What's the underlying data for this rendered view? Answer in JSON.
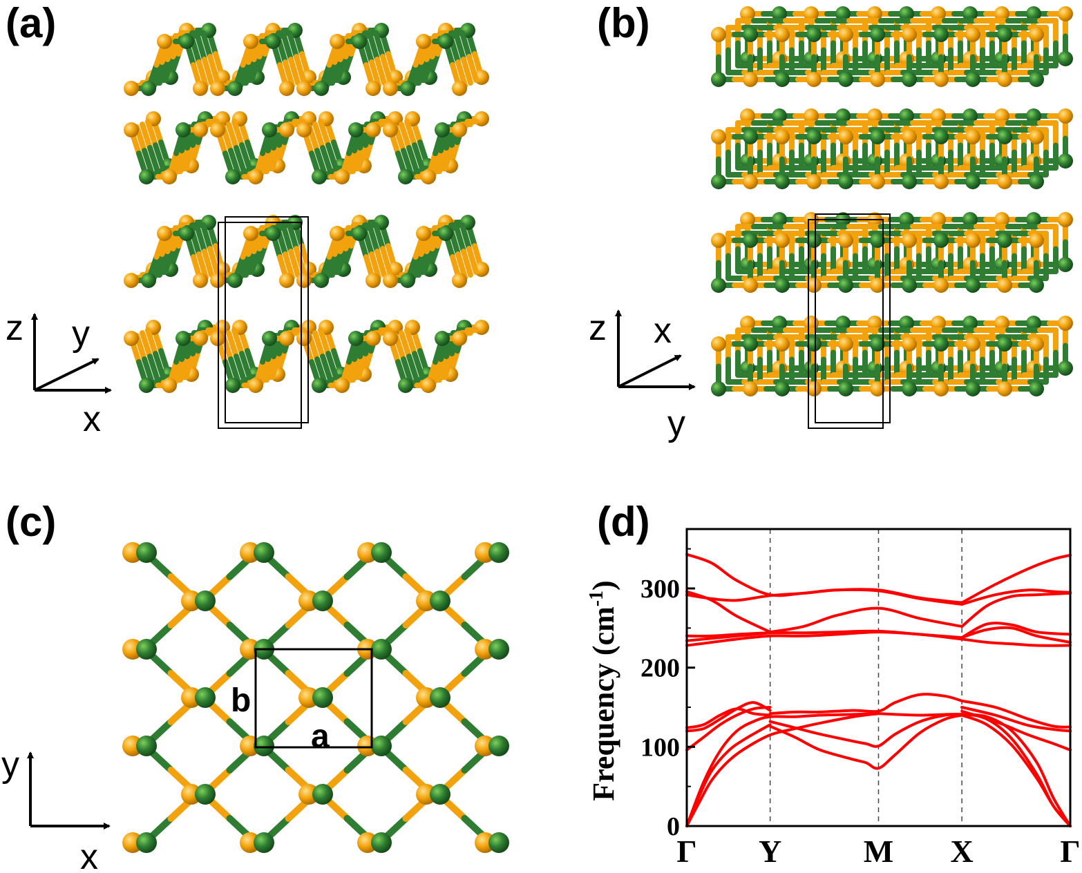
{
  "panels": {
    "a": {
      "label": "(a)",
      "axes": {
        "vertical": "z",
        "diagonal": "y",
        "horizontal": "x"
      }
    },
    "b": {
      "label": "(b)",
      "axes": {
        "vertical": "z",
        "diagonal": "x",
        "horizontal": "y"
      }
    },
    "c": {
      "label": "(c)",
      "axes": {
        "vertical": "y",
        "horizontal": "x"
      },
      "lattice": {
        "a": "a",
        "b": "b"
      }
    },
    "d": {
      "label": "(d)"
    }
  },
  "colors": {
    "atom_green": "#2e7d32",
    "atom_orange": "#f2a20c",
    "band": "#ff0000",
    "cell": "#000000"
  },
  "chart_data": {
    "type": "line",
    "title": "",
    "xlabel": "",
    "ylabel": "Frequency (cm-1)",
    "ylabel_parts": {
      "main": "Frequency (cm",
      "sup": "-1",
      "close": ")"
    },
    "ylim": [
      0,
      375
    ],
    "yticks": [
      0,
      100,
      200,
      300
    ],
    "x_labels": [
      "Γ",
      "Y",
      "M",
      "X",
      "Γ"
    ],
    "x_positions": [
      0,
      1,
      2.3,
      3.3,
      4.6
    ],
    "xlim": [
      0,
      4.6
    ],
    "grid": "dashed vertical lines at high-symmetry points",
    "series": [
      {
        "x": [
          0,
          0.15,
          0.3,
          0.5,
          0.7,
          1.0,
          1.3,
          1.6,
          2.0,
          2.3
        ],
        "y": [
          0,
          30,
          58,
          82,
          98,
          115,
          123,
          130,
          138,
          142
        ]
      },
      {
        "x": [
          0,
          0.15,
          0.3,
          0.5,
          0.7,
          1.0
        ],
        "y": [
          0,
          38,
          70,
          95,
          110,
          128
        ]
      },
      {
        "x": [
          0,
          0.2,
          0.4,
          0.6,
          0.8,
          1.0,
          1.3,
          1.6,
          2.0,
          2.3
        ],
        "y": [
          0,
          55,
          95,
          120,
          132,
          138,
          138,
          140,
          141,
          142
        ]
      },
      {
        "x": [
          0,
          0.2,
          0.4,
          0.6,
          0.8,
          1.0
        ],
        "y": [
          96,
          112,
          128,
          140,
          148,
          150
        ]
      },
      {
        "x": [
          0,
          0.2,
          0.4,
          0.6,
          0.8,
          1.0
        ],
        "y": [
          120,
          123,
          135,
          148,
          156,
          146
        ]
      },
      {
        "x": [
          0,
          0.2,
          0.4,
          0.6,
          0.8,
          1.0
        ],
        "y": [
          124,
          128,
          140,
          148,
          142,
          140
        ]
      },
      {
        "x": [
          1.0,
          1.3,
          1.6,
          2.0,
          2.15,
          2.3,
          2.5,
          2.8,
          3.1,
          3.3
        ],
        "y": [
          126,
          112,
          96,
          84,
          80,
          73,
          90,
          118,
          135,
          140
        ]
      },
      {
        "x": [
          1.0,
          1.3,
          1.6,
          2.0,
          2.15,
          2.3,
          2.5,
          2.8,
          3.1,
          3.3
        ],
        "y": [
          132,
          124,
          116,
          107,
          104,
          101,
          116,
          132,
          140,
          141
        ]
      },
      {
        "x": [
          1.0,
          1.3,
          1.6,
          2.0,
          2.3,
          2.5,
          2.8,
          3.1,
          3.3
        ],
        "y": [
          142,
          144,
          144,
          146,
          145,
          156,
          166,
          164,
          158
        ]
      },
      {
        "x": [
          2.3,
          2.8,
          3.3,
          3.6,
          3.9,
          4.2,
          4.4,
          4.6
        ],
        "y": [
          142,
          140,
          141,
          135,
          110,
          65,
          25,
          0
        ]
      },
      {
        "x": [
          3.3,
          3.6,
          3.9,
          4.2,
          4.4,
          4.6
        ],
        "y": [
          141,
          138,
          120,
          80,
          35,
          0
        ]
      },
      {
        "x": [
          3.3,
          3.6,
          3.9,
          4.2,
          4.4,
          4.6
        ],
        "y": [
          140,
          128,
          102,
          60,
          25,
          0
        ]
      },
      {
        "x": [
          3.3,
          3.7,
          4.1,
          4.4,
          4.6
        ],
        "y": [
          158,
          150,
          135,
          126,
          125
        ]
      },
      {
        "x": [
          3.3,
          3.7,
          4.1,
          4.4,
          4.6
        ],
        "y": [
          150,
          140,
          127,
          122,
          120
        ]
      },
      {
        "x": [
          3.3,
          3.7,
          4.1,
          4.4,
          4.6
        ],
        "y": [
          145,
          132,
          115,
          104,
          96
        ]
      },
      {
        "x": [
          0,
          0.3,
          0.6,
          1.0,
          1.4,
          1.8,
          2.3,
          2.8,
          3.3
        ],
        "y": [
          343,
          332,
          310,
          292,
          294,
          298,
          298,
          288,
          282
        ]
      },
      {
        "x": [
          3.3,
          3.7,
          4.1,
          4.4,
          4.6
        ],
        "y": [
          282,
          305,
          325,
          337,
          342
        ]
      },
      {
        "x": [
          0,
          0.3,
          0.6,
          1.0,
          1.4,
          1.8,
          2.3,
          2.8,
          3.3
        ],
        "y": [
          292,
          287,
          285,
          291,
          294,
          298,
          297,
          287,
          280
        ]
      },
      {
        "x": [
          3.3,
          3.7,
          4.1,
          4.4,
          4.6
        ],
        "y": [
          280,
          292,
          298,
          296,
          295
        ]
      },
      {
        "x": [
          0,
          0.3,
          0.6,
          1.0
        ],
        "y": [
          296,
          285,
          265,
          245
        ]
      },
      {
        "x": [
          1.0,
          1.4,
          1.8,
          2.3,
          2.8,
          3.3
        ],
        "y": [
          245,
          252,
          266,
          275,
          262,
          252
        ]
      },
      {
        "x": [
          3.3,
          3.6,
          3.9,
          4.2,
          4.6
        ],
        "y": [
          252,
          278,
          290,
          292,
          294
        ]
      },
      {
        "x": [
          0,
          0.3,
          0.6,
          1.0,
          1.4,
          1.8,
          2.3,
          2.8,
          3.3
        ],
        "y": [
          240,
          240,
          242,
          244,
          244,
          245,
          246,
          242,
          238
        ]
      },
      {
        "x": [
          3.3,
          3.6,
          3.9,
          4.2,
          4.6
        ],
        "y": [
          238,
          255,
          254,
          245,
          242
        ]
      },
      {
        "x": [
          0,
          0.3,
          0.6,
          1.0
        ],
        "y": [
          234,
          237,
          240,
          244
        ]
      },
      {
        "x": [
          3.3,
          3.6,
          3.9,
          4.2,
          4.6
        ],
        "y": [
          238,
          248,
          250,
          240,
          232
        ]
      },
      {
        "x": [
          0,
          0.3,
          0.6,
          1.0,
          1.4,
          1.8,
          2.3,
          2.8,
          3.3
        ],
        "y": [
          228,
          232,
          236,
          240,
          240,
          242,
          245,
          242,
          236
        ]
      },
      {
        "x": [
          3.3,
          3.6,
          3.9,
          4.2,
          4.6
        ],
        "y": [
          236,
          232,
          230,
          228,
          228
        ]
      }
    ]
  }
}
